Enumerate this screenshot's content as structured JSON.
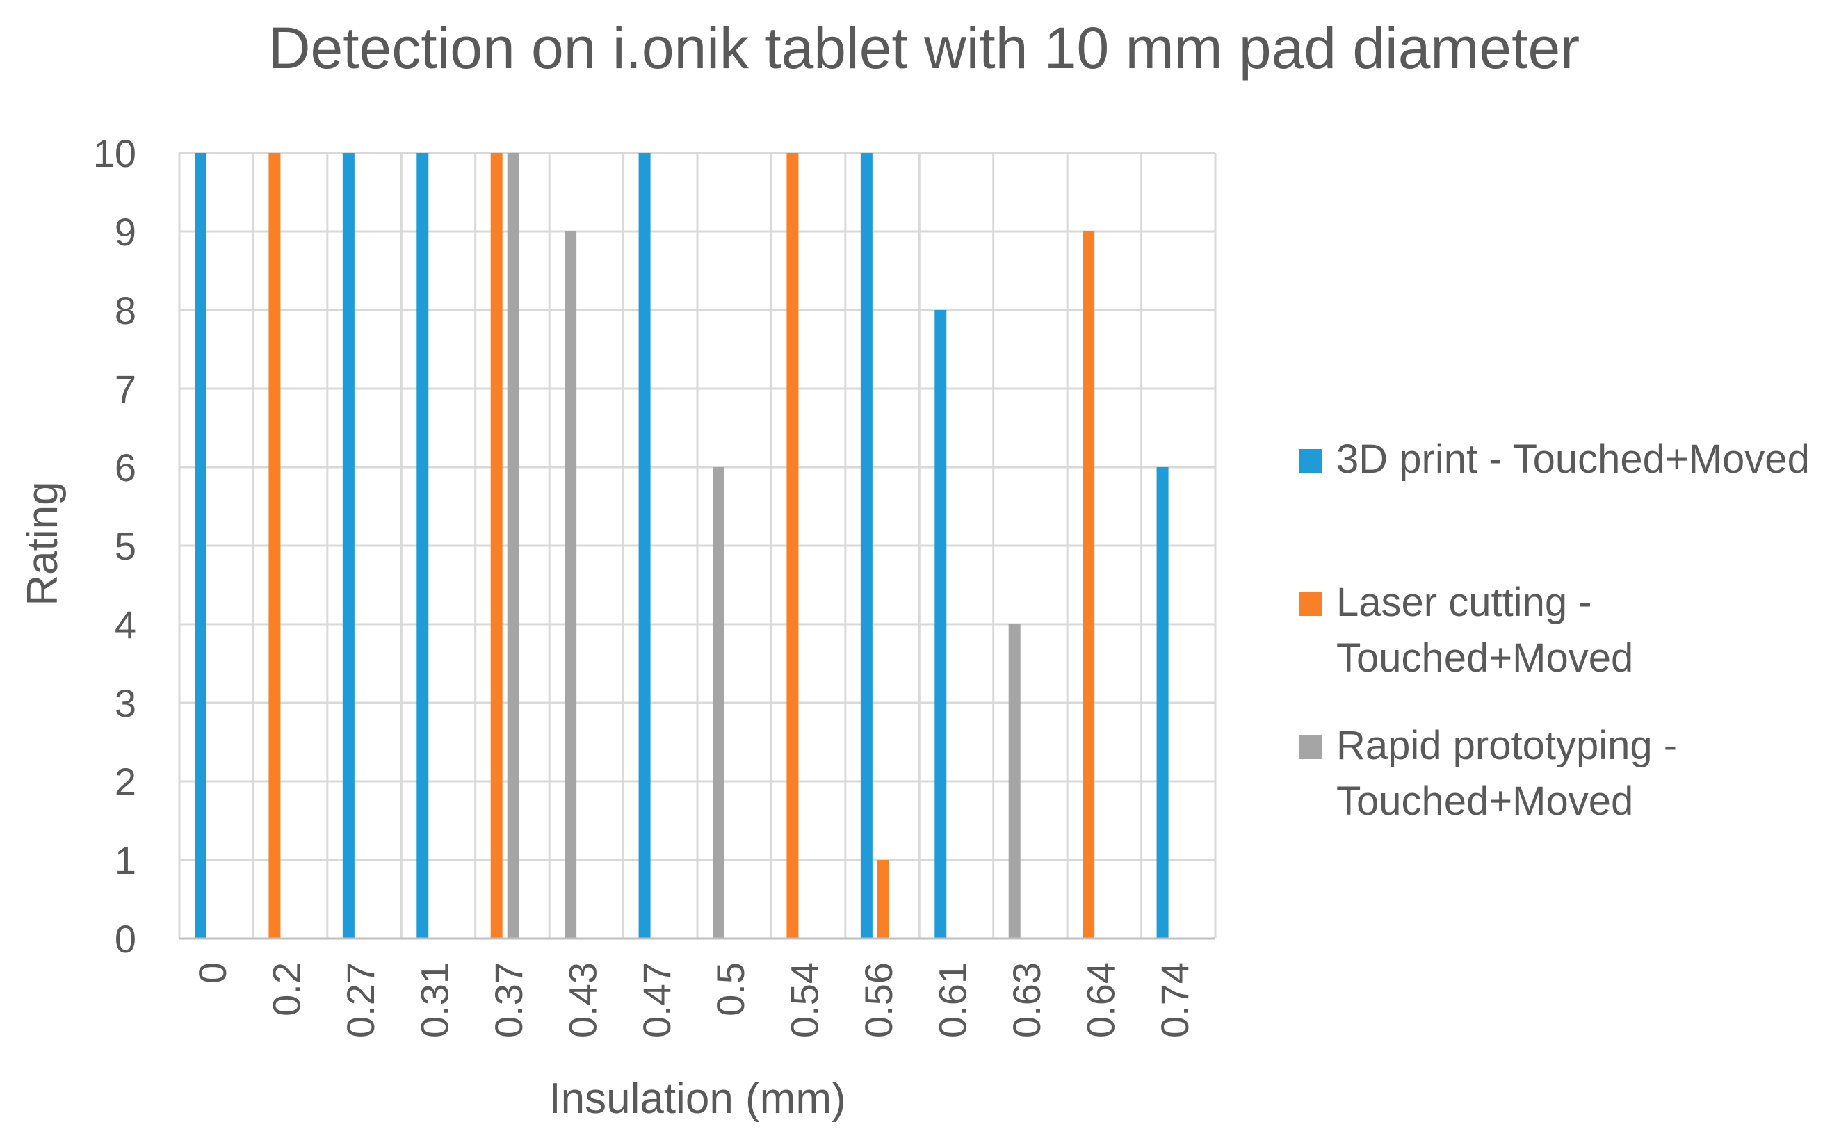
{
  "chart_data": {
    "type": "bar",
    "title": "Detection on i.onik tablet with 10 mm pad diameter",
    "xlabel": "Insulation (mm)",
    "ylabel": "Rating",
    "ylim": [
      0,
      10
    ],
    "yticks": [
      "0",
      "1",
      "2",
      "3",
      "4",
      "5",
      "6",
      "7",
      "8",
      "9",
      "10"
    ],
    "categories": [
      "0",
      "0.2",
      "0.27",
      "0.31",
      "0.37",
      "0.43",
      "0.47",
      "0.5",
      "0.54",
      "0.56",
      "0.61",
      "0.63",
      "0.64",
      "0.74"
    ],
    "grid": true,
    "legend_position": "right",
    "series": [
      {
        "name": "3D print - Touched+Moved",
        "legend_lines": [
          "3D print - Touched+Moved"
        ],
        "color": "#1F9BD7",
        "values": [
          10,
          null,
          10,
          10,
          null,
          null,
          10,
          null,
          null,
          10,
          8,
          null,
          null,
          6
        ]
      },
      {
        "name": "Laser cutting - Touched+Moved",
        "legend_lines": [
          "Laser cutting -",
          "Touched+Moved"
        ],
        "color": "#F98026",
        "values": [
          null,
          10,
          null,
          null,
          10,
          null,
          null,
          null,
          10,
          1,
          null,
          null,
          9,
          null
        ]
      },
      {
        "name": "Rapid prototyping - Touched+Moved",
        "legend_lines": [
          "Rapid prototyping -",
          "Touched+Moved"
        ],
        "color": "#A5A5A5",
        "values": [
          null,
          null,
          null,
          null,
          10,
          9,
          null,
          6,
          null,
          null,
          null,
          4,
          null,
          null
        ]
      }
    ]
  }
}
